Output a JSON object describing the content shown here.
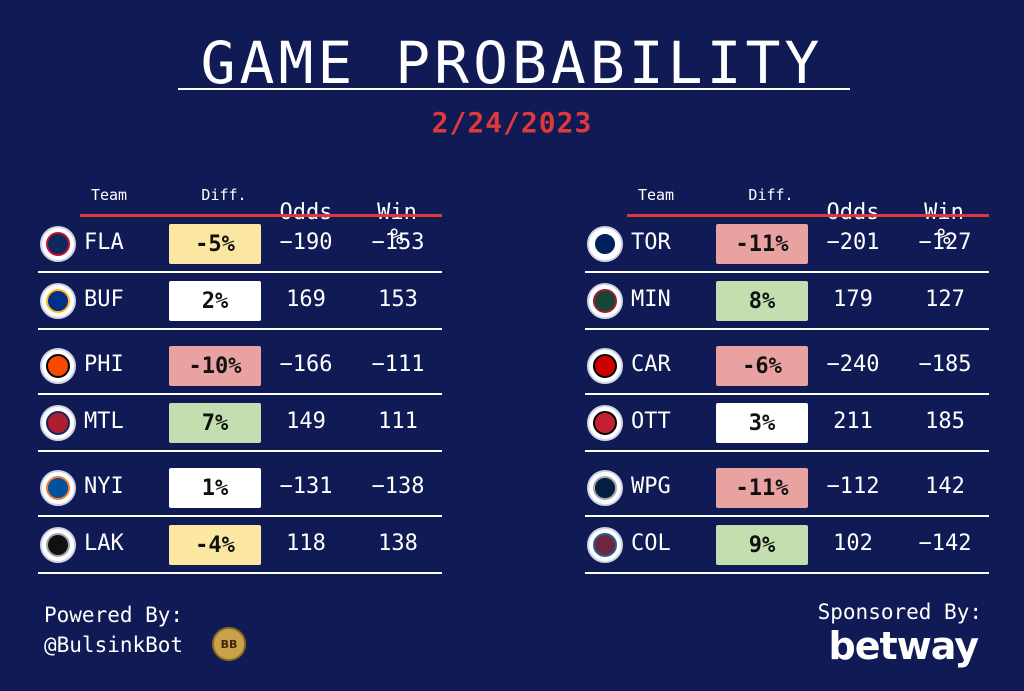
{
  "header": {
    "title": "GAME PROBABILITY",
    "date": "2/24/2023"
  },
  "columns": {
    "team": "Team",
    "diff": "Diff.",
    "odds": "Odds",
    "win": "Win %"
  },
  "colors": {
    "background": "#101a54",
    "accent_red": "#e0393b",
    "diff_yellow": "#fbe7a1",
    "diff_red": "#e8a2a2",
    "diff_green": "#c3dfb0",
    "diff_white": "#ffffff"
  },
  "left_games": [
    {
      "team": "FLA",
      "logo": "florida-panthers-logo",
      "diff": "-5%",
      "diff_color": "#fbe7a1",
      "odds": "−190",
      "win": "−153"
    },
    {
      "team": "BUF",
      "logo": "buffalo-sabres-logo",
      "diff": "2%",
      "diff_color": "#ffffff",
      "odds": "169",
      "win": "153"
    },
    {
      "team": "PHI",
      "logo": "philadelphia-flyers-logo",
      "diff": "-10%",
      "diff_color": "#e8a2a2",
      "odds": "−166",
      "win": "−111"
    },
    {
      "team": "MTL",
      "logo": "montreal-canadiens-logo",
      "diff": "7%",
      "diff_color": "#c3dfb0",
      "odds": "149",
      "win": "111"
    },
    {
      "team": "NYI",
      "logo": "new-york-islanders-logo",
      "diff": "1%",
      "diff_color": "#ffffff",
      "odds": "−131",
      "win": "−138"
    },
    {
      "team": "LAK",
      "logo": "los-angeles-kings-logo",
      "diff": "-4%",
      "diff_color": "#fbe7a1",
      "odds": "118",
      "win": "138"
    }
  ],
  "right_games": [
    {
      "team": "TOR",
      "logo": "toronto-maple-leafs-logo",
      "diff": "-11%",
      "diff_color": "#e8a2a2",
      "odds": "−201",
      "win": "−127"
    },
    {
      "team": "MIN",
      "logo": "minnesota-wild-logo",
      "diff": "8%",
      "diff_color": "#c3dfb0",
      "odds": "179",
      "win": "127"
    },
    {
      "team": "CAR",
      "logo": "carolina-hurricanes-logo",
      "diff": "-6%",
      "diff_color": "#e8a2a2",
      "odds": "−240",
      "win": "−185"
    },
    {
      "team": "OTT",
      "logo": "ottawa-senators-logo",
      "diff": "3%",
      "diff_color": "#ffffff",
      "odds": "211",
      "win": "185"
    },
    {
      "team": "WPG",
      "logo": "winnipeg-jets-logo",
      "diff": "-11%",
      "diff_color": "#e8a2a2",
      "odds": "−112",
      "win": "142"
    },
    {
      "team": "COL",
      "logo": "colorado-avalanche-logo",
      "diff": "9%",
      "diff_color": "#c3dfb0",
      "odds": "102",
      "win": "−142"
    }
  ],
  "footer": {
    "powered_label": "Powered By:",
    "powered_handle": "@BulsinkBot",
    "badge_text": "BB",
    "sponsored_label": "Sponsored By:",
    "sponsor": "betway"
  }
}
